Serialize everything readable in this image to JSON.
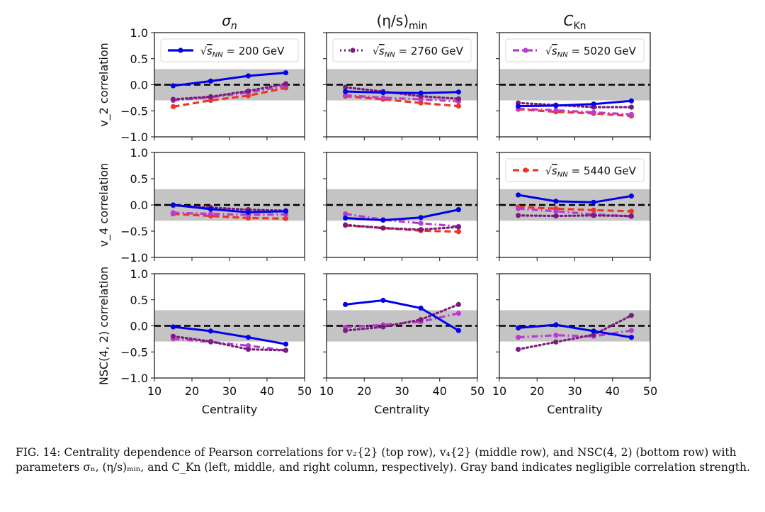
{
  "chart_data": {
    "type": "line",
    "layout": "3x3 grid of panels",
    "column_titles": [
      "σ_n",
      "(η/s)_min",
      "C_Kn"
    ],
    "row_ylabels": [
      "v_2 correlation",
      "v_4 correlation",
      "NSC(4, 2) correlation"
    ],
    "xlabel": "Centrality",
    "xlim": [
      10,
      50
    ],
    "ylim": [
      -1.0,
      1.0
    ],
    "x_ticks": [
      10,
      20,
      30,
      40,
      50
    ],
    "y_ticks": [
      "1.0",
      "0.5",
      "0.0",
      "−0.5",
      "−1.0"
    ],
    "y_tick_values": [
      1.0,
      0.5,
      0.0,
      -0.5,
      -1.0
    ],
    "gray_band": [
      -0.3,
      0.3
    ],
    "reference_line": 0.0,
    "x": [
      15,
      25,
      35,
      45
    ],
    "series_styles": [
      {
        "name": "√s_NN = 200 GeV",
        "color": "#0000ee",
        "dash": "solid"
      },
      {
        "name": "√s_NN = 2760 GeV",
        "color": "#7b1c7d",
        "dash": "dotted"
      },
      {
        "name": "√s_NN = 5020 GeV",
        "color": "#b93bd0",
        "dash": "dashdot"
      },
      {
        "name": "√s_NN = 5440 GeV",
        "color": "#ee3524",
        "dash": "dashed"
      }
    ],
    "legends": [
      {
        "panel": [
          0,
          0
        ],
        "series": 0,
        "label_prefix": "√",
        "label_var": "s",
        "label_sub": "NN",
        "label_value": " = 200 GeV"
      },
      {
        "panel": [
          0,
          1
        ],
        "series": 1,
        "label_prefix": "√",
        "label_var": "s",
        "label_sub": "NN",
        "label_value": " = 2760 GeV"
      },
      {
        "panel": [
          0,
          2
        ],
        "series": 2,
        "label_prefix": "√",
        "label_var": "s",
        "label_sub": "NN",
        "label_value": " = 5020 GeV"
      },
      {
        "panel": [
          1,
          2
        ],
        "series": 3,
        "label_prefix": "√",
        "label_var": "s",
        "label_sub": "NN",
        "label_value": " = 5440 GeV"
      }
    ],
    "panels": [
      [
        {
          "series": [
            [
              -0.02,
              0.07,
              0.17,
              0.23
            ],
            [
              -0.28,
              -0.23,
              -0.12,
              0.02
            ],
            [
              -0.3,
              -0.24,
              -0.15,
              -0.02
            ],
            [
              -0.42,
              -0.3,
              -0.21,
              -0.06
            ]
          ]
        },
        {
          "series": [
            [
              -0.13,
              -0.15,
              -0.16,
              -0.14
            ],
            [
              -0.05,
              -0.13,
              -0.22,
              -0.27
            ],
            [
              -0.2,
              -0.25,
              -0.28,
              -0.32
            ],
            [
              -0.22,
              -0.28,
              -0.35,
              -0.41
            ]
          ]
        },
        {
          "series": [
            [
              -0.41,
              -0.4,
              -0.37,
              -0.31
            ],
            [
              -0.35,
              -0.39,
              -0.43,
              -0.43
            ],
            [
              -0.46,
              -0.49,
              -0.53,
              -0.57
            ],
            [
              -0.47,
              -0.52,
              -0.55,
              -0.6
            ]
          ]
        }
      ],
      [
        {
          "series": [
            [
              0.0,
              -0.08,
              -0.14,
              -0.12
            ],
            [
              -0.01,
              -0.05,
              -0.09,
              -0.11
            ],
            [
              -0.15,
              -0.17,
              -0.19,
              -0.18
            ],
            [
              -0.17,
              -0.21,
              -0.25,
              -0.26
            ]
          ]
        },
        {
          "series": [
            [
              -0.25,
              -0.29,
              -0.24,
              -0.09
            ],
            [
              -0.38,
              -0.44,
              -0.47,
              -0.42
            ],
            [
              -0.17,
              -0.28,
              -0.35,
              -0.41
            ],
            [
              -0.39,
              -0.44,
              -0.49,
              -0.51
            ]
          ]
        },
        {
          "series": [
            [
              0.19,
              0.07,
              0.05,
              0.17
            ],
            [
              -0.2,
              -0.21,
              -0.2,
              -0.21
            ],
            [
              -0.07,
              -0.12,
              -0.18,
              -0.22
            ],
            [
              -0.04,
              -0.07,
              -0.1,
              -0.12
            ]
          ]
        }
      ],
      [
        {
          "series": [
            [
              -0.02,
              -0.1,
              -0.22,
              -0.35
            ],
            [
              -0.2,
              -0.3,
              -0.45,
              -0.47
            ],
            [
              -0.25,
              -0.31,
              -0.38,
              -0.47
            ],
            null
          ]
        },
        {
          "series": [
            [
              0.41,
              0.49,
              0.34,
              -0.09
            ],
            [
              -0.09,
              -0.02,
              0.12,
              0.41
            ],
            [
              -0.03,
              0.02,
              0.08,
              0.24
            ],
            null
          ]
        },
        {
          "series": [
            [
              -0.04,
              0.02,
              -0.1,
              -0.22
            ],
            [
              -0.45,
              -0.31,
              -0.17,
              0.2
            ],
            [
              -0.22,
              -0.18,
              -0.2,
              -0.09
            ],
            null
          ]
        }
      ]
    ]
  },
  "caption": {
    "label": "FIG. 14:",
    "text": " Centrality dependence of Pearson correlations for v₂{2} (top row), v₄{2} (middle row), and NSC(4, 2) (bottom row) with parameters σₙ, (η/s)ₘᵢₙ, and C_Kn (left, middle, and right column, respectively). Gray band indicates negligible correlation strength."
  }
}
